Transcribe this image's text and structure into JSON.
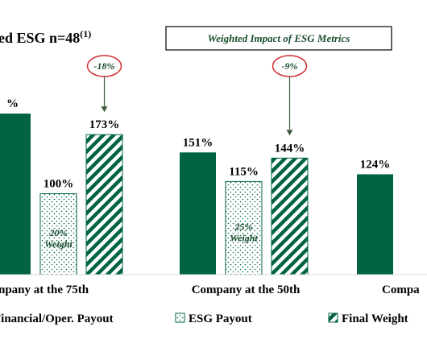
{
  "chart_data": {
    "type": "bar",
    "title": "ed ESG n=48",
    "title_superscript": "(1)",
    "box_label": "Weighted Impact of ESG Metrics",
    "categories": [
      "npany at the 75th",
      "Company at the 50th",
      "Compa"
    ],
    "series": [
      {
        "name": "Financial/Oper. Payout",
        "values": [
          199,
          151,
          124
        ],
        "labels": [
          "%",
          "151%",
          "124%"
        ],
        "color": "#006444",
        "pattern": "solid"
      },
      {
        "name": "ESG Payout",
        "values": [
          100,
          115,
          null
        ],
        "labels": [
          "100%",
          "115%",
          ""
        ],
        "color": "#ffffff",
        "pattern": "dots"
      },
      {
        "name": "Final Weight",
        "values": [
          173,
          144,
          null
        ],
        "labels": [
          "173%",
          "144%",
          ""
        ],
        "color": "#006444",
        "pattern": "stripes"
      }
    ],
    "bar_annotations": [
      {
        "category": 0,
        "series": 1,
        "lines": [
          "20%",
          "Weight"
        ]
      },
      {
        "category": 1,
        "series": 1,
        "lines": [
          "25%",
          "Weight"
        ]
      }
    ],
    "callouts": [
      {
        "category": 0,
        "text": "-18%"
      },
      {
        "category": 1,
        "text": "-9%"
      }
    ],
    "legend": {
      "position": "bottom"
    },
    "ylim": [
      0,
      205
    ],
    "grid": false,
    "xlabel": "",
    "ylabel": ""
  }
}
